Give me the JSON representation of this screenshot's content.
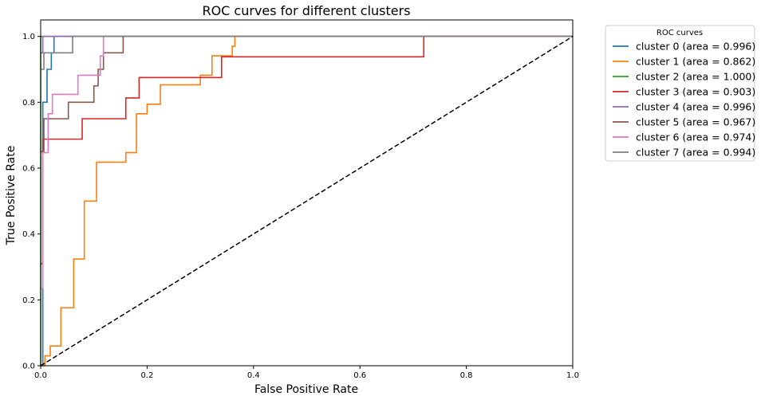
{
  "chart_data": {
    "type": "line",
    "title": "ROC curves for different clusters",
    "xlabel": "False Positive Rate",
    "ylabel": "True Positive Rate",
    "xlim": [
      0.0,
      1.0
    ],
    "ylim": [
      0.0,
      1.05
    ],
    "xticks": [
      "0.0",
      "0.2",
      "0.4",
      "0.6",
      "0.8",
      "1.0"
    ],
    "yticks": [
      "0.0",
      "0.2",
      "0.4",
      "0.6",
      "0.8",
      "1.0"
    ],
    "xtick_values": [
      0,
      0.2,
      0.4,
      0.6,
      0.8,
      1.0
    ],
    "ytick_values": [
      0,
      0.2,
      0.4,
      0.6,
      0.8,
      1.0
    ],
    "grid": false,
    "legend": {
      "title": "ROC curves",
      "placement": "outside-top-right"
    },
    "diagonal": {
      "style": "dashed",
      "color": "#000000",
      "points": [
        [
          0,
          0
        ],
        [
          1,
          1
        ]
      ]
    },
    "series": [
      {
        "name": "cluster 0 (area = 0.996)",
        "color": "#1f77b4",
        "x": [
          0,
          0.004,
          0.004,
          0.012,
          0.012,
          0.02,
          0.02,
          0.025,
          0.025,
          1.0
        ],
        "y": [
          0,
          0,
          0.8,
          0.8,
          0.9,
          0.9,
          0.95,
          0.95,
          1.0,
          1.0
        ]
      },
      {
        "name": "cluster 1 (area = 0.862)",
        "color": "#ff7f0e",
        "x": [
          0,
          0.008,
          0.008,
          0.018,
          0.018,
          0.038,
          0.038,
          0.062,
          0.062,
          0.082,
          0.082,
          0.105,
          0.105,
          0.16,
          0.16,
          0.18,
          0.18,
          0.2,
          0.2,
          0.225,
          0.225,
          0.3,
          0.3,
          0.322,
          0.322,
          0.36,
          0.36,
          0.365,
          0.365,
          1.0
        ],
        "y": [
          0,
          0,
          0.03,
          0.03,
          0.06,
          0.06,
          0.176,
          0.176,
          0.324,
          0.324,
          0.5,
          0.5,
          0.618,
          0.618,
          0.647,
          0.647,
          0.765,
          0.765,
          0.794,
          0.794,
          0.853,
          0.853,
          0.882,
          0.882,
          0.941,
          0.941,
          0.97,
          0.97,
          1.0,
          1.0
        ]
      },
      {
        "name": "cluster 2 (area = 1.000)",
        "color": "#2ca02c",
        "x": [
          0,
          0,
          1.0
        ],
        "y": [
          0,
          1.0,
          1.0
        ]
      },
      {
        "name": "cluster 3 (area = 0.903)",
        "color": "#d62728",
        "x": [
          0,
          0.004,
          0.004,
          0.078,
          0.078,
          0.16,
          0.16,
          0.185,
          0.185,
          0.34,
          0.34,
          0.72,
          0.72,
          1.0
        ],
        "y": [
          0.31,
          0.31,
          0.688,
          0.688,
          0.75,
          0.75,
          0.813,
          0.813,
          0.875,
          0.875,
          0.938,
          0.938,
          1.0,
          1.0
        ]
      },
      {
        "name": "cluster 4 (area = 0.996)",
        "color": "#9467bd",
        "x": [
          0,
          0.004,
          0.004,
          1.0
        ],
        "y": [
          0.95,
          0.95,
          1.0,
          1.0
        ]
      },
      {
        "name": "cluster 5 (area = 0.967)",
        "color": "#8c564b",
        "x": [
          0,
          0.006,
          0.006,
          0.052,
          0.052,
          0.1,
          0.1,
          0.108,
          0.108,
          0.118,
          0.118,
          0.155,
          0.155,
          0.215,
          0.215,
          1.0
        ],
        "y": [
          0.65,
          0.65,
          0.75,
          0.75,
          0.8,
          0.8,
          0.85,
          0.85,
          0.9,
          0.9,
          0.95,
          0.95,
          1.0,
          1.0,
          1.0,
          1.0
        ]
      },
      {
        "name": "cluster 6 (area = 0.974)",
        "color": "#e377c2",
        "x": [
          0,
          0.004,
          0.004,
          0.014,
          0.014,
          0.022,
          0.022,
          0.07,
          0.07,
          0.112,
          0.112,
          0.118,
          0.118,
          1.0
        ],
        "y": [
          0.235,
          0.235,
          0.647,
          0.647,
          0.765,
          0.765,
          0.824,
          0.824,
          0.882,
          0.882,
          0.941,
          0.941,
          1.0,
          1.0
        ]
      },
      {
        "name": "cluster 7 (area = 0.994)",
        "color": "#7f7f7f",
        "x": [
          0,
          0.006,
          0.006,
          0.06,
          0.06,
          1.0
        ],
        "y": [
          0.9,
          0.9,
          0.95,
          0.95,
          1.0,
          1.0
        ]
      }
    ]
  }
}
